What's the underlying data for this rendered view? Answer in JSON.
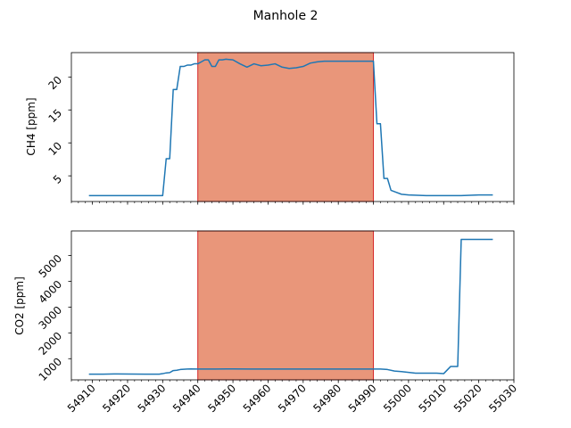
{
  "chart_data": {
    "type": "line",
    "title": "Manhole 2",
    "colors": {
      "line": "#1f77b4",
      "span_fill": "#e9967a",
      "span_edge": "#d62728"
    },
    "x_ticks": [
      54910,
      54920,
      54930,
      54940,
      54950,
      54960,
      54970,
      54980,
      54990,
      55000,
      55010,
      55020,
      55030
    ],
    "xlim": [
      54904,
      55030
    ],
    "highlight_span": [
      54940,
      54990
    ],
    "panels": [
      {
        "ylabel": "CH4 [ppm]",
        "ylim": [
          1.1,
          23.7
        ],
        "y_ticks": [
          5,
          10,
          15,
          20
        ],
        "y_tick_labels": [
          "5",
          "10",
          "15",
          "20"
        ],
        "series": {
          "x": [
            54909,
            54913,
            54917,
            54921,
            54925,
            54929,
            54930,
            54931,
            54932,
            54933,
            54934,
            54935,
            54936,
            54937,
            54938,
            54939,
            54940,
            54941,
            54942,
            54943,
            54944,
            54945,
            54946,
            54947,
            54948,
            54950,
            54952,
            54954,
            54956,
            54958,
            54960,
            54962,
            54964,
            54966,
            54968,
            54970,
            54972,
            54974,
            54976,
            54978,
            54980,
            54982,
            54984,
            54986,
            54988,
            54990,
            54991,
            54992,
            54993,
            54994,
            54995,
            54996,
            54998,
            55000,
            55005,
            55010,
            55015,
            55020,
            55024
          ],
          "y": [
            2.0,
            2.0,
            2.0,
            2.0,
            2.0,
            2.0,
            2.0,
            7.6,
            7.6,
            18.1,
            18.1,
            21.6,
            21.6,
            21.8,
            21.8,
            22.0,
            22.0,
            22.3,
            22.6,
            22.6,
            21.6,
            21.6,
            22.6,
            22.6,
            22.7,
            22.6,
            22.0,
            21.5,
            22.0,
            21.7,
            21.8,
            22.0,
            21.5,
            21.3,
            21.4,
            21.6,
            22.1,
            22.3,
            22.4,
            22.4,
            22.4,
            22.4,
            22.4,
            22.4,
            22.4,
            22.4,
            12.9,
            12.9,
            4.6,
            4.6,
            2.8,
            2.6,
            2.2,
            2.1,
            2.0,
            2.0,
            2.0,
            2.1,
            2.1
          ]
        }
      },
      {
        "ylabel": "CO2 [ppm]",
        "ylim": [
          180,
          5950
        ],
        "y_ticks": [
          1000,
          2000,
          3000,
          4000,
          5000
        ],
        "y_tick_labels": [
          "1000",
          "2000",
          "3000",
          "4000",
          "5000"
        ],
        "series": {
          "x": [
            54909,
            54913,
            54917,
            54921,
            54925,
            54929,
            54930,
            54931,
            54932,
            54933,
            54934,
            54935,
            54936,
            54937,
            54938,
            54940,
            54945,
            54950,
            54955,
            54960,
            54965,
            54970,
            54975,
            54980,
            54985,
            54990,
            54992,
            54994,
            54996,
            54998,
            55000,
            55002,
            55004,
            55006,
            55008,
            55010,
            55012,
            55013,
            55014,
            55015,
            55016,
            55020,
            55024
          ],
          "y": [
            400,
            400,
            410,
            405,
            400,
            400,
            420,
            450,
            460,
            540,
            550,
            580,
            590,
            600,
            605,
            600,
            600,
            605,
            600,
            600,
            600,
            600,
            600,
            600,
            600,
            600,
            600,
            580,
            520,
            500,
            470,
            440,
            440,
            440,
            440,
            420,
            700,
            700,
            700,
            5620,
            5620,
            5620,
            5620
          ]
        }
      }
    ]
  }
}
